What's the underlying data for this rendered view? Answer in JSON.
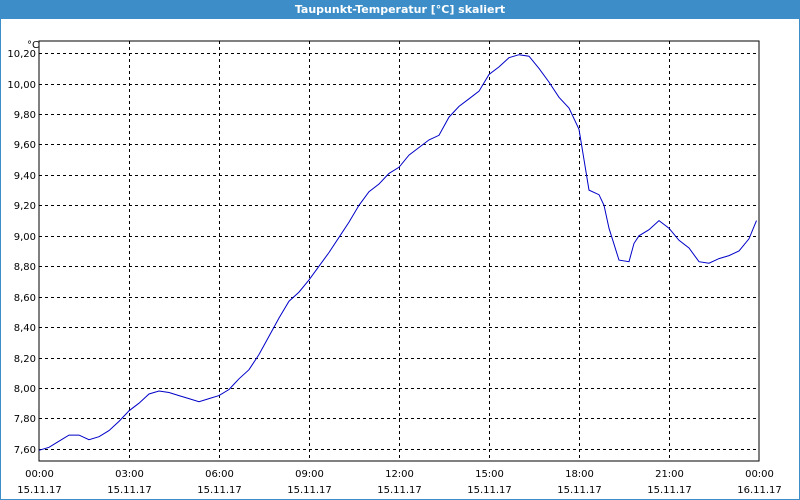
{
  "window": {
    "title": "Taupunkt-Temperatur [°C] skaliert"
  },
  "colors": {
    "titlebar": "#3d8ec8",
    "line": "#0000c8",
    "grid": "#000000"
  },
  "chart_data": {
    "type": "line",
    "title": "Taupunkt-Temperatur [°C] skaliert",
    "ylabel": "°C",
    "xlabel": "",
    "grid": true,
    "ylim": [
      7.52,
      10.28
    ],
    "xlim": [
      "15.11.17 00:00",
      "16.11.17 00:00"
    ],
    "x_ticks": [
      {
        "time": "00:00",
        "date": "15.11.17"
      },
      {
        "time": "03:00",
        "date": "15.11.17"
      },
      {
        "time": "06:00",
        "date": "15.11.17"
      },
      {
        "time": "09:00",
        "date": "15.11.17"
      },
      {
        "time": "12:00",
        "date": "15.11.17"
      },
      {
        "time": "15:00",
        "date": "15.11.17"
      },
      {
        "time": "18:00",
        "date": "15.11.17"
      },
      {
        "time": "21:00",
        "date": "15.11.17"
      },
      {
        "time": "00:00",
        "date": "16.11.17"
      }
    ],
    "y_ticks": [
      "7,60",
      "7,80",
      "8,00",
      "8,20",
      "8,40",
      "8,60",
      "8,80",
      "9,00",
      "9,20",
      "9,40",
      "9,60",
      "9,80",
      "10,00",
      "10,20"
    ],
    "series": [
      {
        "x": [
          "00:00",
          "00:20",
          "00:40",
          "01:00",
          "01:20",
          "01:40",
          "02:00",
          "02:20",
          "02:40",
          "03:00",
          "03:20",
          "03:40",
          "04:00",
          "04:20",
          "04:40",
          "05:00",
          "05:20",
          "05:40",
          "06:00",
          "06:20",
          "06:40",
          "07:00",
          "07:20",
          "07:40",
          "08:00",
          "08:20",
          "08:40",
          "09:00",
          "09:20",
          "09:40",
          "10:00",
          "10:20",
          "10:40",
          "11:00",
          "11:20",
          "11:40",
          "12:00",
          "12:20",
          "12:40",
          "13:00",
          "13:20",
          "13:40",
          "14:00",
          "14:20",
          "14:40",
          "15:00",
          "15:20",
          "15:40",
          "16:00",
          "16:20",
          "16:40",
          "17:00",
          "17:20",
          "17:40",
          "18:00",
          "18:10",
          "18:20",
          "18:40",
          "18:50",
          "19:00",
          "19:20",
          "19:40",
          "19:50",
          "20:00",
          "20:20",
          "20:40",
          "21:00",
          "21:20",
          "21:40",
          "22:00",
          "22:20",
          "22:40",
          "23:00",
          "23:20",
          "23:40",
          "23:55"
        ],
        "y": [
          7.59,
          7.61,
          7.65,
          7.69,
          7.69,
          7.66,
          7.68,
          7.72,
          7.78,
          7.85,
          7.9,
          7.96,
          7.98,
          7.97,
          7.95,
          7.93,
          7.91,
          7.93,
          7.95,
          7.99,
          8.06,
          8.12,
          8.22,
          8.34,
          8.46,
          8.57,
          8.63,
          8.71,
          8.8,
          8.89,
          8.99,
          9.09,
          9.2,
          9.29,
          9.34,
          9.41,
          9.45,
          9.53,
          9.58,
          9.63,
          9.66,
          9.78,
          9.85,
          9.9,
          9.95,
          10.06,
          10.11,
          10.17,
          10.19,
          10.18,
          10.1,
          10.01,
          9.91,
          9.84,
          9.7,
          9.5,
          9.3,
          9.27,
          9.2,
          9.05,
          8.84,
          8.83,
          8.95,
          9.0,
          9.04,
          9.1,
          9.05,
          8.97,
          8.92,
          8.83,
          8.82,
          8.85,
          8.87,
          8.9,
          8.98,
          9.1
        ]
      }
    ]
  }
}
